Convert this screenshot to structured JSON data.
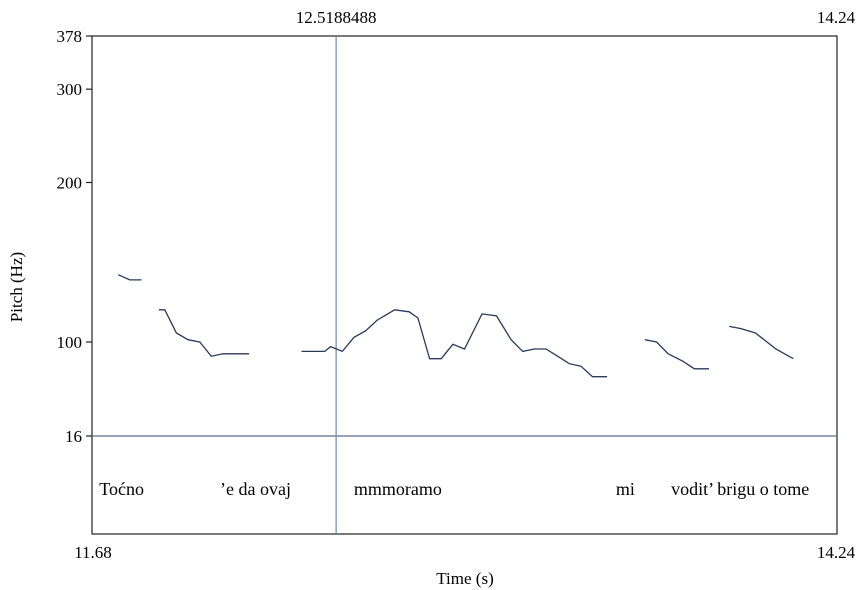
{
  "chart_data": {
    "type": "line",
    "title": "",
    "xlabel": "Time (s)",
    "ylabel": "Pitch (Hz)",
    "xlim": [
      11.68,
      14.24
    ],
    "ylim": [
      16,
      378
    ],
    "x_start_label": "11.68",
    "x_end_label": "14.24",
    "x_end_top_label": "14.24",
    "cursor": {
      "time": 12.5188488,
      "label": "12.5188488"
    },
    "y_ticks": [
      {
        "value": 378,
        "label": "378"
      },
      {
        "value": 300,
        "label": "300"
      },
      {
        "value": 200,
        "label": "200"
      },
      {
        "value": 100,
        "label": "100"
      }
    ],
    "tier_boundary": {
      "value": 16,
      "label": "16"
    },
    "pitch_segments": [
      {
        "x": [
          11.77,
          11.81,
          11.85
        ],
        "y": [
          134,
          131,
          131
        ]
      },
      {
        "x": [
          11.91,
          11.93,
          11.97,
          12.01,
          12.05,
          12.09,
          12.13,
          12.18,
          12.22
        ],
        "y": [
          115,
          115,
          104,
          101,
          100,
          94,
          95,
          95,
          95
        ]
      },
      {
        "x": [
          12.4,
          12.48,
          12.5,
          12.54,
          12.58,
          12.62,
          12.66,
          12.72,
          12.77,
          12.8,
          12.84,
          12.88,
          12.92,
          12.96,
          13.02,
          13.07,
          13.12,
          13.16,
          13.2,
          13.24,
          13.28,
          13.32,
          13.36,
          13.4,
          13.45
        ],
        "y": [
          96,
          96,
          98,
          96,
          102,
          105,
          110,
          115,
          114,
          111,
          93,
          93,
          99,
          97,
          113,
          112,
          101,
          96,
          97,
          97,
          94,
          91,
          90,
          86,
          86
        ]
      },
      {
        "x": [
          13.58,
          13.62,
          13.66,
          13.71,
          13.75,
          13.8
        ],
        "y": [
          101,
          100,
          95,
          92,
          89,
          89
        ]
      },
      {
        "x": [
          13.87,
          13.91,
          13.96,
          14.03,
          14.09
        ],
        "y": [
          107,
          106,
          104,
          97,
          93
        ]
      }
    ],
    "intervals": [
      {
        "text": "Toćno",
        "x": 11.705
      },
      {
        "text": "’e da ovaj",
        "x": 12.12
      },
      {
        "text": "mmmoramo",
        "x": 12.58
      },
      {
        "text": "mi",
        "x": 13.48
      },
      {
        "text": "vodit’ brigu o tome",
        "x": 13.67
      }
    ]
  }
}
